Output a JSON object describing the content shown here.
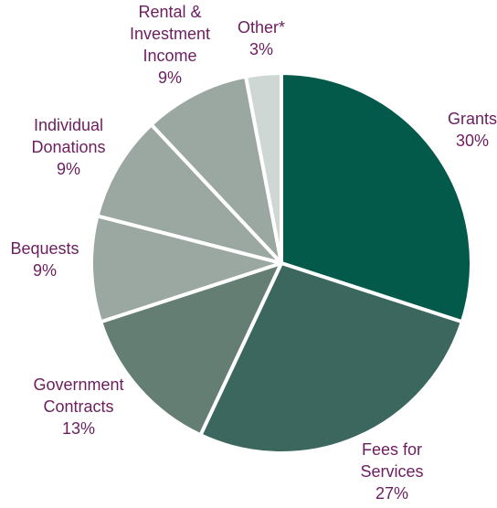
{
  "chart_data": {
    "type": "pie",
    "title": "",
    "slices": [
      {
        "label_lines": [
          "Grants"
        ],
        "pct_text": "30%",
        "value": 30,
        "color": "#03594a"
      },
      {
        "label_lines": [
          "Fees for",
          "Services"
        ],
        "pct_text": "27%",
        "value": 27,
        "color": "#3b675e"
      },
      {
        "label_lines": [
          "Government",
          "Contracts"
        ],
        "pct_text": "13%",
        "value": 13,
        "color": "#647e74"
      },
      {
        "label_lines": [
          "Bequests"
        ],
        "pct_text": "9%",
        "value": 9,
        "color": "#9aa8a1"
      },
      {
        "label_lines": [
          "Individual",
          "Donations"
        ],
        "pct_text": "9%",
        "value": 9,
        "color": "#9aa8a1"
      },
      {
        "label_lines": [
          "Rental &",
          "Investment",
          "Income"
        ],
        "pct_text": "9%",
        "value": 9,
        "color": "#9aa8a1"
      },
      {
        "label_lines": [
          "Other*"
        ],
        "pct_text": "3%",
        "value": 3,
        "color": "#cfd7d4"
      }
    ],
    "label_color": "#6b1e5e",
    "start_angle_deg": 0,
    "direction": "clockwise"
  }
}
